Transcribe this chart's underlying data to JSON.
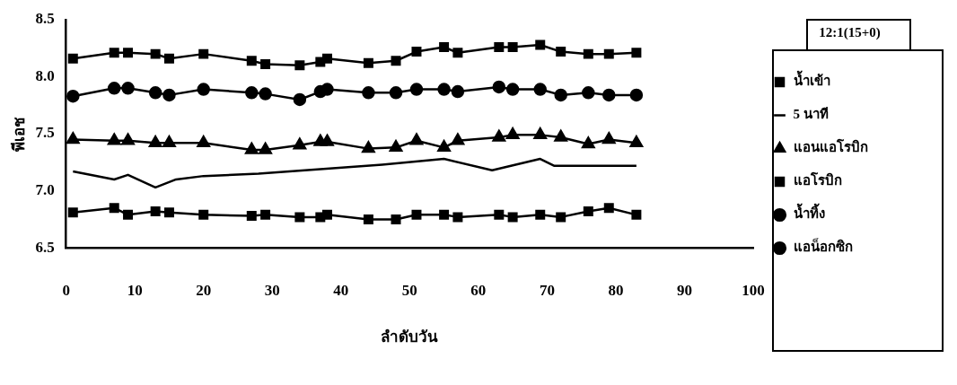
{
  "chart_data": {
    "type": "line",
    "xlabel": "ลำดับวัน",
    "ylabel": "พีเอช",
    "legend_title": "12:1(15+0)",
    "legend": "right",
    "grid": false,
    "xlim": [
      0,
      100
    ],
    "xticks": [
      0,
      10,
      20,
      30,
      40,
      50,
      60,
      70,
      80,
      90,
      100
    ],
    "ylim": [
      6.5,
      8.5
    ],
    "yticks": [
      6.5,
      {
        "value": 7,
        "label": "7.0"
      },
      7.5,
      {
        "value": 8,
        "label": "8.0"
      },
      8.5
    ],
    "x": [
      1,
      7,
      9,
      13,
      15,
      20,
      27,
      29,
      34,
      37,
      38,
      44,
      48,
      51,
      55,
      57,
      63,
      65,
      69,
      72,
      76,
      79,
      83
    ],
    "series": [
      {
        "name": "น้ำเข้า",
        "color": "#000000",
        "marker": "square",
        "values": [
          6.81,
          6.85,
          6.79,
          6.82,
          6.81,
          6.79,
          6.78,
          6.79,
          6.77,
          6.77,
          6.79,
          6.75,
          6.75,
          6.79,
          6.79,
          6.77,
          6.79,
          6.77,
          6.79,
          6.77,
          6.82,
          6.85,
          6.79
        ]
      },
      {
        "name": "5 นาที",
        "color": "#000000",
        "marker": "none",
        "x": [
          1,
          7,
          9,
          13,
          16,
          20,
          28,
          46,
          55,
          62,
          69,
          71,
          83
        ],
        "values": [
          7.17,
          7.1,
          7.14,
          7.03,
          7.1,
          7.13,
          7.15,
          7.23,
          7.28,
          7.18,
          7.28,
          7.22,
          7.22
        ]
      },
      {
        "name": "แอนแอโรบิก",
        "color": "#000000",
        "marker": "triangle",
        "values": [
          7.45,
          7.44,
          7.44,
          7.42,
          7.42,
          7.42,
          7.36,
          7.36,
          7.4,
          7.43,
          7.43,
          7.37,
          7.38,
          7.44,
          7.38,
          7.44,
          7.47,
          7.49,
          7.49,
          7.47,
          7.41,
          7.45,
          7.42
        ]
      },
      {
        "name": "แอโรบิก",
        "color": "#000000",
        "marker": "square",
        "values": [
          8.16,
          8.21,
          8.21,
          8.2,
          8.16,
          8.2,
          8.14,
          8.11,
          8.1,
          8.13,
          8.16,
          8.12,
          8.14,
          8.22,
          8.26,
          8.21,
          8.26,
          8.26,
          8.28,
          8.22,
          8.2,
          8.2,
          8.21
        ]
      },
      {
        "name": "น้ำทิ้ง",
        "color": "#000000",
        "marker": "circle",
        "values": [
          7.83,
          7.9,
          7.9,
          7.86,
          7.84,
          7.89,
          7.86,
          7.85,
          7.8,
          7.87,
          7.89,
          7.86,
          7.86,
          7.89,
          7.89,
          7.87,
          7.91,
          7.89,
          7.89,
          7.84,
          7.86,
          7.84,
          7.84
        ]
      },
      {
        "name": "แอน็อกซิก",
        "color": "#000000",
        "marker": "circle",
        "values": [
          null,
          null,
          null,
          null,
          null,
          null,
          null,
          null,
          null,
          null,
          null,
          null,
          null,
          null,
          null,
          null,
          null,
          null,
          null,
          null,
          null,
          null,
          null
        ]
      }
    ]
  }
}
